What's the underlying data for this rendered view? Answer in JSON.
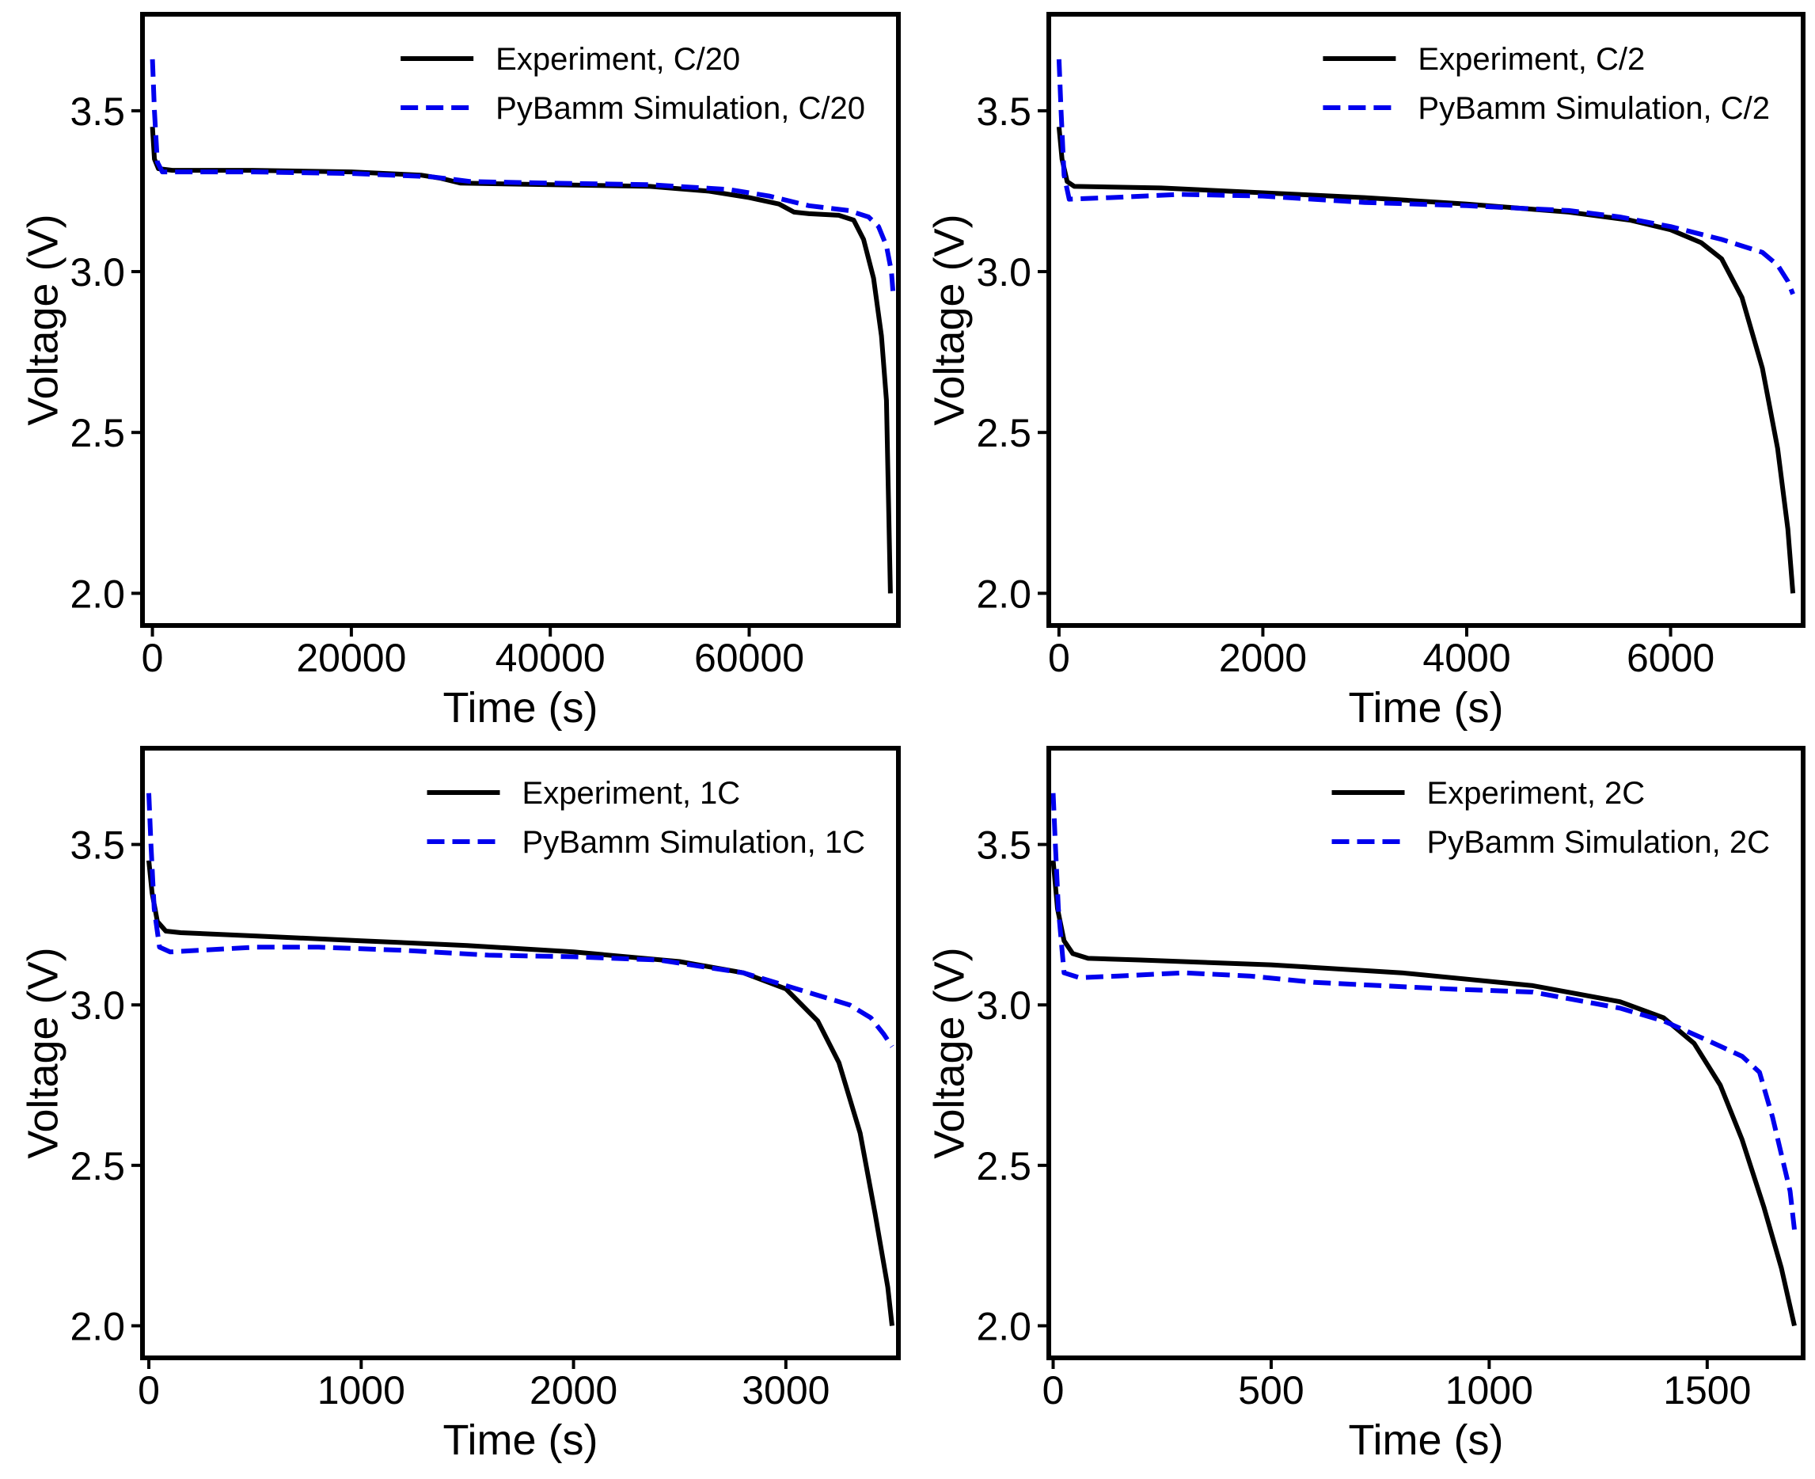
{
  "chart_data": [
    {
      "type": "line",
      "xlabel": "Time (s)",
      "ylabel": "Voltage (V)",
      "xlim": [
        -1000,
        75000
      ],
      "ylim": [
        1.9,
        3.8
      ],
      "xticks": [
        0,
        20000,
        40000,
        60000
      ],
      "xtick_labels": [
        "0",
        "20000",
        "40000",
        "60000"
      ],
      "yticks": [
        2.0,
        2.5,
        3.0,
        3.5
      ],
      "ytick_labels": [
        "2.0",
        "2.5",
        "3.0",
        "3.5"
      ],
      "grid": false,
      "legend_position": "top-right",
      "series": [
        {
          "name": "Experiment, C/20",
          "color": "#000000",
          "style": "solid",
          "points": [
            [
              0,
              3.45
            ],
            [
              200,
              3.35
            ],
            [
              600,
              3.32
            ],
            [
              2000,
              3.315
            ],
            [
              10000,
              3.315
            ],
            [
              20000,
              3.31
            ],
            [
              27000,
              3.3
            ],
            [
              29000,
              3.29
            ],
            [
              31000,
              3.275
            ],
            [
              40000,
              3.27
            ],
            [
              50000,
              3.265
            ],
            [
              56000,
              3.25
            ],
            [
              60000,
              3.23
            ],
            [
              63000,
              3.21
            ],
            [
              64500,
              3.185
            ],
            [
              66000,
              3.18
            ],
            [
              69000,
              3.175
            ],
            [
              70500,
              3.16
            ],
            [
              71500,
              3.1
            ],
            [
              72500,
              2.98
            ],
            [
              73300,
              2.8
            ],
            [
              73800,
              2.6
            ],
            [
              74000,
              2.3
            ],
            [
              74200,
              2.0
            ]
          ]
        },
        {
          "name": "PyBamm Simulation, C/20",
          "color": "#0000ee",
          "style": "dashed",
          "points": [
            [
              0,
              3.66
            ],
            [
              200,
              3.5
            ],
            [
              500,
              3.34
            ],
            [
              1000,
              3.31
            ],
            [
              10000,
              3.31
            ],
            [
              20000,
              3.305
            ],
            [
              28000,
              3.295
            ],
            [
              32000,
              3.28
            ],
            [
              40000,
              3.275
            ],
            [
              50000,
              3.27
            ],
            [
              58000,
              3.255
            ],
            [
              62000,
              3.235
            ],
            [
              66000,
              3.205
            ],
            [
              70000,
              3.19
            ],
            [
              72000,
              3.17
            ],
            [
              73000,
              3.14
            ],
            [
              73800,
              3.08
            ],
            [
              74300,
              3.0
            ],
            [
              74500,
              2.92
            ]
          ]
        }
      ]
    },
    {
      "type": "line",
      "xlabel": "Time (s)",
      "ylabel": "Voltage (V)",
      "xlim": [
        -100,
        7300
      ],
      "ylim": [
        1.9,
        3.8
      ],
      "xticks": [
        0,
        2000,
        4000,
        6000
      ],
      "xtick_labels": [
        "0",
        "2000",
        "4000",
        "6000"
      ],
      "yticks": [
        2.0,
        2.5,
        3.0,
        3.5
      ],
      "ytick_labels": [
        "2.0",
        "2.5",
        "3.0",
        "3.5"
      ],
      "grid": false,
      "legend_position": "top-right",
      "series": [
        {
          "name": "Experiment, C/2",
          "color": "#000000",
          "style": "solid",
          "points": [
            [
              0,
              3.45
            ],
            [
              30,
              3.35
            ],
            [
              80,
              3.28
            ],
            [
              150,
              3.265
            ],
            [
              1000,
              3.26
            ],
            [
              2000,
              3.245
            ],
            [
              3000,
              3.23
            ],
            [
              4000,
              3.21
            ],
            [
              5000,
              3.185
            ],
            [
              5600,
              3.16
            ],
            [
              6000,
              3.13
            ],
            [
              6300,
              3.09
            ],
            [
              6500,
              3.04
            ],
            [
              6700,
              2.92
            ],
            [
              6900,
              2.7
            ],
            [
              7050,
              2.45
            ],
            [
              7150,
              2.2
            ],
            [
              7200,
              2.0
            ]
          ]
        },
        {
          "name": "PyBamm Simulation, C/2",
          "color": "#0000ee",
          "style": "dashed",
          "points": [
            [
              0,
              3.66
            ],
            [
              20,
              3.5
            ],
            [
              50,
              3.3
            ],
            [
              100,
              3.225
            ],
            [
              500,
              3.23
            ],
            [
              1200,
              3.24
            ],
            [
              2000,
              3.235
            ],
            [
              3000,
              3.215
            ],
            [
              4000,
              3.205
            ],
            [
              5000,
              3.19
            ],
            [
              5500,
              3.17
            ],
            [
              6000,
              3.14
            ],
            [
              6500,
              3.1
            ],
            [
              6900,
              3.06
            ],
            [
              7050,
              3.02
            ],
            [
              7150,
              2.97
            ],
            [
              7200,
              2.93
            ]
          ]
        }
      ]
    },
    {
      "type": "line",
      "xlabel": "Time (s)",
      "ylabel": "Voltage (V)",
      "xlim": [
        -30,
        3530
      ],
      "ylim": [
        1.9,
        3.8
      ],
      "xticks": [
        0,
        1000,
        2000,
        3000
      ],
      "xtick_labels": [
        "0",
        "1000",
        "2000",
        "3000"
      ],
      "yticks": [
        2.0,
        2.5,
        3.0,
        3.5
      ],
      "ytick_labels": [
        "2.0",
        "2.5",
        "3.0",
        "3.5"
      ],
      "grid": false,
      "legend_position": "top-right",
      "series": [
        {
          "name": "Experiment, 1C",
          "color": "#000000",
          "style": "solid",
          "points": [
            [
              0,
              3.45
            ],
            [
              15,
              3.35
            ],
            [
              40,
              3.26
            ],
            [
              80,
              3.23
            ],
            [
              150,
              3.225
            ],
            [
              500,
              3.215
            ],
            [
              1000,
              3.2
            ],
            [
              1500,
              3.185
            ],
            [
              2000,
              3.165
            ],
            [
              2500,
              3.135
            ],
            [
              2800,
              3.1
            ],
            [
              3000,
              3.05
            ],
            [
              3150,
              2.95
            ],
            [
              3250,
              2.82
            ],
            [
              3350,
              2.6
            ],
            [
              3420,
              2.35
            ],
            [
              3480,
              2.12
            ],
            [
              3500,
              2.0
            ]
          ]
        },
        {
          "name": "PyBamm Simulation, 1C",
          "color": "#0000ee",
          "style": "dashed",
          "points": [
            [
              0,
              3.66
            ],
            [
              10,
              3.5
            ],
            [
              25,
              3.3
            ],
            [
              50,
              3.18
            ],
            [
              100,
              3.165
            ],
            [
              500,
              3.18
            ],
            [
              800,
              3.18
            ],
            [
              1200,
              3.17
            ],
            [
              1600,
              3.155
            ],
            [
              2000,
              3.15
            ],
            [
              2400,
              3.14
            ],
            [
              2800,
              3.1
            ],
            [
              3100,
              3.04
            ],
            [
              3300,
              3.0
            ],
            [
              3400,
              2.96
            ],
            [
              3460,
              2.91
            ],
            [
              3500,
              2.87
            ]
          ]
        }
      ]
    },
    {
      "type": "line",
      "xlabel": "Time (s)",
      "ylabel": "Voltage (V)",
      "xlim": [
        -10,
        1720
      ],
      "ylim": [
        1.9,
        3.8
      ],
      "xticks": [
        0,
        500,
        1000,
        1500
      ],
      "xtick_labels": [
        "0",
        "500",
        "1000",
        "1500"
      ],
      "yticks": [
        2.0,
        2.5,
        3.0,
        3.5
      ],
      "ytick_labels": [
        "2.0",
        "2.5",
        "3.0",
        "3.5"
      ],
      "grid": false,
      "legend_position": "top-right",
      "series": [
        {
          "name": "Experiment, 2C",
          "color": "#000000",
          "style": "solid",
          "points": [
            [
              0,
              3.45
            ],
            [
              10,
              3.3
            ],
            [
              25,
              3.2
            ],
            [
              45,
              3.16
            ],
            [
              80,
              3.145
            ],
            [
              200,
              3.14
            ],
            [
              500,
              3.125
            ],
            [
              800,
              3.1
            ],
            [
              1100,
              3.06
            ],
            [
              1300,
              3.01
            ],
            [
              1400,
              2.96
            ],
            [
              1470,
              2.88
            ],
            [
              1530,
              2.75
            ],
            [
              1580,
              2.58
            ],
            [
              1630,
              2.37
            ],
            [
              1670,
              2.18
            ],
            [
              1700,
              2.0
            ]
          ]
        },
        {
          "name": "PyBamm Simulation, 2C",
          "color": "#0000ee",
          "style": "dashed",
          "points": [
            [
              0,
              3.66
            ],
            [
              5,
              3.5
            ],
            [
              12,
              3.3
            ],
            [
              25,
              3.1
            ],
            [
              60,
              3.085
            ],
            [
              150,
              3.09
            ],
            [
              300,
              3.1
            ],
            [
              450,
              3.09
            ],
            [
              600,
              3.07
            ],
            [
              900,
              3.05
            ],
            [
              1100,
              3.04
            ],
            [
              1300,
              2.99
            ],
            [
              1400,
              2.95
            ],
            [
              1500,
              2.89
            ],
            [
              1580,
              2.84
            ],
            [
              1620,
              2.79
            ],
            [
              1650,
              2.65
            ],
            [
              1690,
              2.42
            ],
            [
              1700,
              2.3
            ]
          ]
        }
      ]
    }
  ]
}
